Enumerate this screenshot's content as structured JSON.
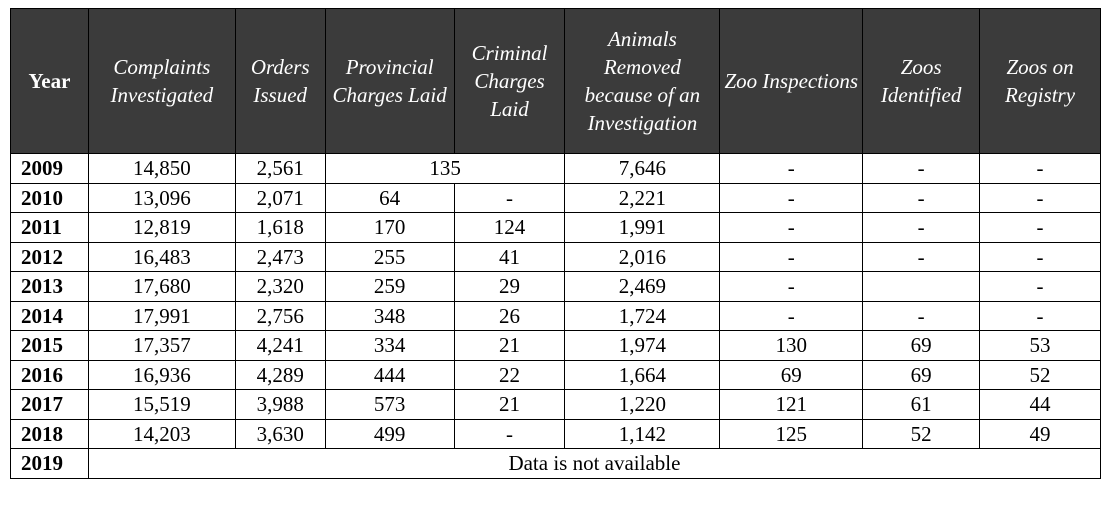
{
  "headers": {
    "year": "Year",
    "complaints": "Complaints Investigated",
    "orders": "Orders Issued",
    "provincial": "Provincial Charges Laid",
    "criminal": "Criminal Charges Laid",
    "animals": "Animals Removed because of an Investigation",
    "zoo_inspections": "Zoo Inspections",
    "zoos_identified": "Zoos Identified",
    "zoos_registry": "Zoos on Registry"
  },
  "rows": [
    {
      "year": "2009",
      "complaints": "14,850",
      "orders": "2,561",
      "charges_combined": "135",
      "animals": "7,646",
      "zoo_inspections": "-",
      "zoos_identified": "-",
      "zoos_registry": "-"
    },
    {
      "year": "2010",
      "complaints": "13,096",
      "orders": "2,071",
      "provincial": "64",
      "criminal": "-",
      "animals": "2,221",
      "zoo_inspections": "-",
      "zoos_identified": "-",
      "zoos_registry": "-"
    },
    {
      "year": "2011",
      "complaints": "12,819",
      "orders": "1,618",
      "provincial": "170",
      "criminal": "124",
      "animals": "1,991",
      "zoo_inspections": "-",
      "zoos_identified": "-",
      "zoos_registry": "-"
    },
    {
      "year": "2012",
      "complaints": "16,483",
      "orders": "2,473",
      "provincial": "255",
      "criminal": "41",
      "animals": "2,016",
      "zoo_inspections": "-",
      "zoos_identified": "-",
      "zoos_registry": "-"
    },
    {
      "year": "2013",
      "complaints": "17,680",
      "orders": "2,320",
      "provincial": "259",
      "criminal": "29",
      "animals": "2,469",
      "zoo_inspections": "-",
      "zoos_identified": "",
      "zoos_registry": "-"
    },
    {
      "year": "2014",
      "complaints": "17,991",
      "orders": "2,756",
      "provincial": "348",
      "criminal": "26",
      "animals": "1,724",
      "zoo_inspections": "-",
      "zoos_identified": "-",
      "zoos_registry": "-"
    },
    {
      "year": "2015",
      "complaints": "17,357",
      "orders": "4,241",
      "provincial": "334",
      "criminal": "21",
      "animals": "1,974",
      "zoo_inspections": "130",
      "zoos_identified": "69",
      "zoos_registry": "53"
    },
    {
      "year": "2016",
      "complaints": "16,936",
      "orders": "4,289",
      "provincial": "444",
      "criminal": "22",
      "animals": "1,664",
      "zoo_inspections": "69",
      "zoos_identified": "69",
      "zoos_registry": "52"
    },
    {
      "year": "2017",
      "complaints": "15,519",
      "orders": "3,988",
      "provincial": "573",
      "criminal": "21",
      "animals": "1,220",
      "zoo_inspections": "121",
      "zoos_identified": "61",
      "zoos_registry": "44"
    },
    {
      "year": "2018",
      "complaints": "14,203",
      "orders": "3,630",
      "provincial": "499",
      "criminal": "-",
      "animals": "1,142",
      "zoo_inspections": "125",
      "zoos_identified": "52",
      "zoos_registry": "49"
    }
  ],
  "last_row": {
    "year": "2019",
    "note": "Data is not available"
  }
}
